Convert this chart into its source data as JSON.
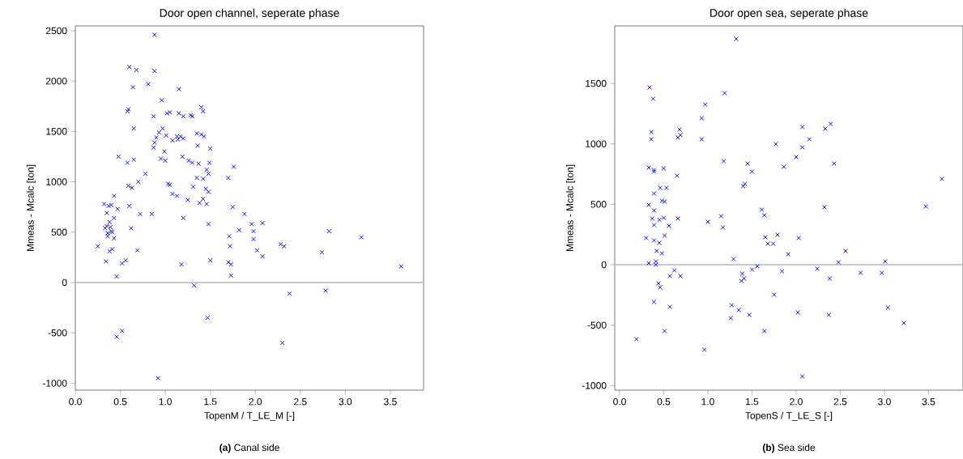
{
  "chart_data": [
    {
      "type": "scatter",
      "title": "Door open channel, seperate phase",
      "xlabel": "TopenM / T_LE_M [-]",
      "ylabel": "Mmeas - Mcalc [ton]",
      "annotations": [
        "**(a)** Canal side"
      ],
      "marker": "cross",
      "grid": false,
      "xlim": [
        0,
        3.87
      ],
      "ylim": [
        -1069,
        2548
      ],
      "xticks": [
        {
          "value": 0,
          "label": "0.0"
        },
        {
          "value": 0.5,
          "label": "0.5"
        },
        {
          "value": 1,
          "label": "1.0"
        },
        {
          "value": 1.5,
          "label": "1.5"
        },
        {
          "value": 2,
          "label": "2.0"
        },
        {
          "value": 2.5,
          "label": "2.5"
        },
        {
          "value": 3,
          "label": "3.0"
        },
        {
          "value": 3.5,
          "label": "3.5"
        }
      ],
      "yticks": [
        -1000,
        -500,
        0,
        500,
        1000,
        1500,
        2000,
        2500
      ],
      "ref_lines": [
        {
          "axis": "y",
          "value": 0,
          "color": "#c8c8c8"
        }
      ],
      "series": [
        {
          "color": "#0000ff",
          "x": [
            0.88,
            0.6,
            0.68,
            0.88,
            0.64,
            0.81,
            1.15,
            0.87,
            0.58,
            0.59,
            0.96,
            1.4,
            1.42,
            1.02,
            1.05,
            1.15,
            1.2,
            1.28,
            1.3,
            0.65,
            0.97,
            0.93,
            1.01,
            0.9,
            0.88,
            0.87,
            0.99,
            1.13,
            1.14,
            1.17,
            1.2,
            1.35,
            1.4,
            1.43,
            1.36,
            1.5,
            1.08,
            0.95,
            1.0,
            1.19,
            1.26,
            1.3,
            1.37,
            1.46,
            1.49,
            1.48,
            0.48,
            0.58,
            0.65,
            0.78,
            1.03,
            1.05,
            1.31,
            1.35,
            1.42,
            1.45,
            1.48,
            1.7,
            1.76,
            0.59,
            0.6,
            0.63,
            0.7,
            1.08,
            1.13,
            1.42,
            1.38,
            1.46,
            1.25,
            1.75,
            0.43,
            0.47,
            0.37,
            0.32,
            0.35,
            0.4,
            0.43,
            0.35,
            0.38,
            0.39,
            0.4,
            0.33,
            0.36,
            0.36,
            0.41,
            0.43,
            0.25,
            0.38,
            0.34,
            0.41,
            0.52,
            0.56,
            0.46,
            0.85,
            0.72,
            0.62,
            0.69,
            1.2,
            1.18,
            1.48,
            1.5,
            1.7,
            1.73,
            1.73,
            1.71,
            1.72,
            1.88,
            1.82,
            1.96,
            1.98,
            1.98,
            2.02,
            2.08,
            2.08,
            2.28,
            2.32,
            2.82,
            2.74,
            3.18,
            3.62,
            1.32,
            1.47,
            2.38,
            2.78,
            2.3,
            0.46,
            0.52,
            0.92
          ],
          "values": [
            2460,
            2140,
            2110,
            2100,
            1940,
            1970,
            1920,
            1650,
            1700,
            1720,
            1810,
            1740,
            1700,
            1680,
            1690,
            1680,
            1650,
            1660,
            1650,
            1530,
            1530,
            1490,
            1460,
            1440,
            1390,
            1340,
            1300,
            1450,
            1420,
            1450,
            1430,
            1480,
            1470,
            1450,
            1360,
            1330,
            1410,
            1230,
            1210,
            1250,
            1210,
            1190,
            1180,
            1120,
            1190,
            1080,
            1250,
            1190,
            1220,
            1080,
            980,
            970,
            950,
            1040,
            1030,
            930,
            900,
            1040,
            1150,
            960,
            760,
            940,
            1000,
            880,
            860,
            830,
            790,
            780,
            820,
            750,
            860,
            730,
            760,
            780,
            690,
            770,
            640,
            560,
            600,
            550,
            510,
            540,
            490,
            460,
            500,
            440,
            360,
            310,
            210,
            330,
            190,
            220,
            60,
            680,
            680,
            540,
            320,
            640,
            180,
            580,
            220,
            200,
            180,
            70,
            460,
            360,
            680,
            520,
            580,
            510,
            430,
            320,
            260,
            590,
            380,
            360,
            510,
            300,
            450,
            160,
            -30,
            -350,
            -110,
            -80,
            -600,
            -540,
            -480,
            -950
          ]
        }
      ]
    },
    {
      "type": "scatter",
      "title": "Door open sea, seperate phase",
      "xlabel": "TopenS / T_LE_S [-]",
      "ylabel": "Mmeas - Mcalc [ton]",
      "annotations": [
        "**(b)** Sea side"
      ],
      "marker": "cross",
      "grid": false,
      "xlim": [
        -0.055,
        3.89
      ],
      "ylim": [
        -1038,
        1976
      ],
      "xticks": [
        {
          "value": 0,
          "label": "0.0"
        },
        {
          "value": 0.5,
          "label": "0.5"
        },
        {
          "value": 1,
          "label": "1.0"
        },
        {
          "value": 1.5,
          "label": "1.5"
        },
        {
          "value": 2,
          "label": "2.0"
        },
        {
          "value": 2.5,
          "label": "2.5"
        },
        {
          "value": 3,
          "label": "3.0"
        },
        {
          "value": 3.5,
          "label": "3.5"
        }
      ],
      "yticks": [
        -1000,
        -500,
        0,
        500,
        1000,
        1500
      ],
      "ref_lines": [
        {
          "axis": "y",
          "value": 0,
          "color": "#c8c8c8"
        }
      ],
      "series": [
        {
          "color": "#0000ff",
          "x": [
            0.34,
            0.38,
            0.36,
            0.36,
            0.68,
            0.69,
            0.66,
            0.97,
            0.93,
            0.93,
            1.19,
            1.18,
            0.33,
            0.39,
            0.39,
            0.5,
            0.65,
            0.39,
            0.46,
            0.53,
            0.33,
            0.48,
            0.51,
            0.39,
            0.37,
            0.45,
            0.5,
            0.66,
            0.39,
            0.3,
            0.56,
            0.51,
            0.39,
            0.45,
            0.42,
            0.48,
            0.33,
            0.41,
            0.41,
            1.0,
            1.15,
            1.17,
            0.62,
            0.57,
            0.69,
            0.44,
            0.46,
            0.39,
            0.57,
            0.51,
            0.19,
            0.96,
            1.32,
            1.45,
            1.5,
            1.4,
            1.42,
            1.77,
            1.86,
            2.0,
            2.07,
            2.07,
            2.15,
            2.33,
            2.39,
            2.43,
            3.65,
            1.61,
            1.64,
            2.32,
            3.47,
            1.65,
            1.68,
            1.74,
            1.79,
            2.03,
            1.91,
            2.56,
            1.29,
            2.48,
            3.01,
            1.56,
            1.5,
            1.84,
            2.24,
            2.38,
            2.73,
            2.97,
            1.39,
            1.38,
            1.41,
            1.75,
            1.27,
            1.35,
            1.26,
            1.47,
            2.02,
            2.37,
            3.04,
            3.22,
            1.64,
            2.07
          ],
          "values": [
            1467,
            1373,
            1098,
            1038,
            1118,
            1072,
            1052,
            1326,
            1212,
            1038,
            1420,
            857,
            804,
            784,
            770,
            797,
            737,
            589,
            636,
            636,
            496,
            529,
            522,
            449,
            382,
            372,
            388,
            382,
            328,
            221,
            321,
            241,
            201,
            181,
            114,
            94,
            13,
            27,
            0,
            355,
            402,
            308,
            -47,
            -94,
            -94,
            -154,
            -188,
            -308,
            -348,
            -549,
            -616,
            -703,
            1869,
            837,
            770,
            650,
            668,
            998,
            810,
            891,
            971,
            1139,
            1038,
            1125,
            1165,
            837,
            710,
            455,
            409,
            476,
            482,
            228,
            174,
            174,
            248,
            221,
            87,
            114,
            47,
            20,
            27,
            -13,
            -40,
            -54,
            -33,
            -114,
            -67,
            -67,
            -74,
            -134,
            -114,
            -248,
            -335,
            -375,
            -442,
            -415,
            -395,
            -415,
            -355,
            -482,
            -549,
            -924
          ]
        }
      ]
    }
  ]
}
